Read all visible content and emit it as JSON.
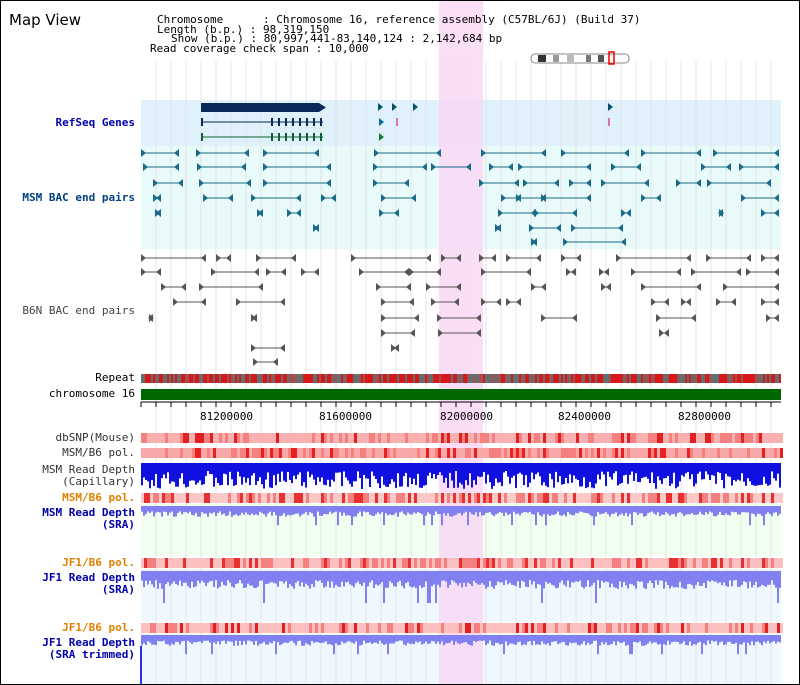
{
  "view_title": "Map View",
  "header": {
    "line1": "Chromosome      : Chromosome 16, reference assembly (C57BL/6J) (Build 37)",
    "line2": "Length (b.p.) : 98,319,150",
    "line3": "Show (b.p.) : 80,997,441-83,140,124 : 2,142,684 bp",
    "line4": "Read coverage check span : 10,000"
  },
  "tracks": {
    "refseq": "RefSeq Genes",
    "msm_bac": "MSM BAC end pairs",
    "b6n_bac": "B6N BAC end pairs",
    "repeat": "Repeat",
    "chromosome": "chromosome 16",
    "dbsnp": "dbSNP(Mouse)",
    "msm_b6_pol_1": "MSM/B6 pol.",
    "msm_read_cap": "MSM Read Depth\n(Capillary)",
    "msm_b6_pol_2": "MSM/B6 pol.",
    "msm_read_sra": "MSM Read Depth\n(SRA)",
    "jf1_b6_pol_1": "JF1/B6 pol.",
    "jf1_read_sra": "JF1 Read Depth\n(SRA)",
    "jf1_b6_pol_2": "JF1/B6 pol.",
    "jf1_read_trim": "JF1 Read Depth\n(SRA trimmed)"
  },
  "axis_ticks": [
    "81200000",
    "81600000",
    "82000000",
    "82400000",
    "82800000"
  ],
  "colors": {
    "highlight": "#f8d8f4",
    "refseq_bg": "#dff2fb",
    "msm_bg": "#e8fafa",
    "chrom_bar": "#006600",
    "repeat_red": "#d81818",
    "repeat_gray": "#607070",
    "snp_red": "#f06060",
    "depth_blue": "#1010e0",
    "depth_light_blue": "#8080f0",
    "msm_depth_bg": "#f0fff0",
    "jf1_depth_bg": "#f0f8ff"
  }
}
